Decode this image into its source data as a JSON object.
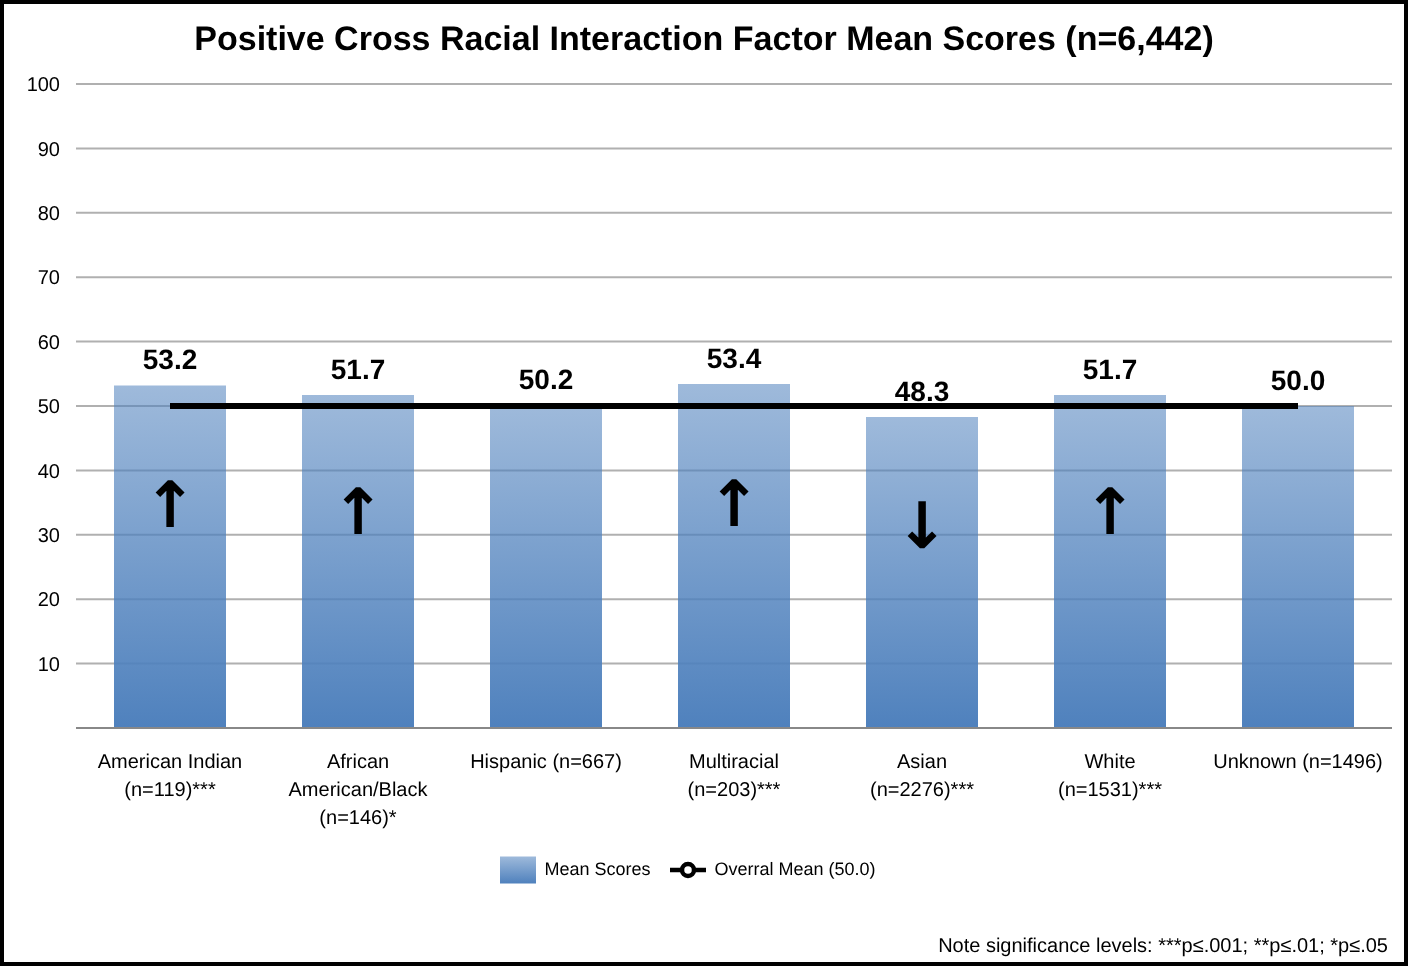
{
  "chart_data": {
    "type": "bar",
    "title": "Positive Cross Racial Interaction Factor Mean Scores (n=6,442)",
    "categories": [
      "American Indian (n=119)***",
      "African American/Black (n=146)*",
      "Hispanic (n=667)",
      "Multiracial (n=203)***",
      "Asian (n=2276)***",
      "White (n=1531)***",
      "Unknown (n=1496)"
    ],
    "series": [
      {
        "name": "Mean Scores",
        "color": "#4f81bd",
        "values": [
          53.2,
          51.7,
          50.2,
          53.4,
          48.3,
          51.7,
          50.0
        ],
        "value_labels": [
          "53.2",
          "51.7",
          "50.2",
          "53.4",
          "48.3",
          "51.7",
          "50.0"
        ]
      },
      {
        "name": "Overral Mean (50.0)",
        "type": "line",
        "color": "#000000",
        "values": [
          50,
          50,
          50,
          50,
          50,
          50,
          50
        ]
      }
    ],
    "ylim": [
      0,
      100
    ],
    "yticks": [
      {
        "value": 0,
        "label": null
      },
      10,
      20,
      30,
      40,
      50,
      60,
      70,
      80,
      90,
      100
    ],
    "grid": "y",
    "legend": "bottom",
    "marker": "none",
    "annotations": [
      {
        "text": "↑",
        "x": "American Indian (n=119)***",
        "y": 53.2
      },
      {
        "text": "↑",
        "x": "African American/Black (n=146)*",
        "y": 51.7
      },
      {
        "text": "↑",
        "x": "Multiracial (n=203)***",
        "y": 53.4
      },
      {
        "text": "↓",
        "x": "Asian (n=2276)***",
        "y": 48.3
      },
      {
        "text": "↑",
        "x": "White (n=1531)***",
        "y": 51.7
      },
      "Note significance levels:  ***p≤.001; **p≤.01; *p≤.05"
    ]
  }
}
